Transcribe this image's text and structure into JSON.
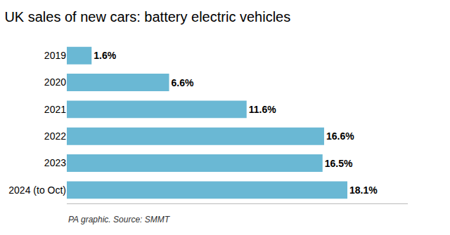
{
  "chart_data": {
    "type": "bar",
    "orientation": "horizontal",
    "title": "UK sales of new cars: battery electric vehicles",
    "categories": [
      "2019",
      "2020",
      "2021",
      "2022",
      "2023",
      "2024 (to Oct)"
    ],
    "values": [
      1.6,
      6.6,
      11.6,
      16.6,
      16.5,
      18.1
    ],
    "value_labels": [
      "1.6%",
      "6.6%",
      "11.6%",
      "16.6%",
      "16.5%",
      "18.1%"
    ],
    "data_labels": true,
    "color": "#6ab8d4",
    "xlim": [
      0,
      22
    ],
    "tick_labels": "y",
    "grid": false,
    "annotations": [
      "PA graphic. Source: SMMT"
    ]
  }
}
